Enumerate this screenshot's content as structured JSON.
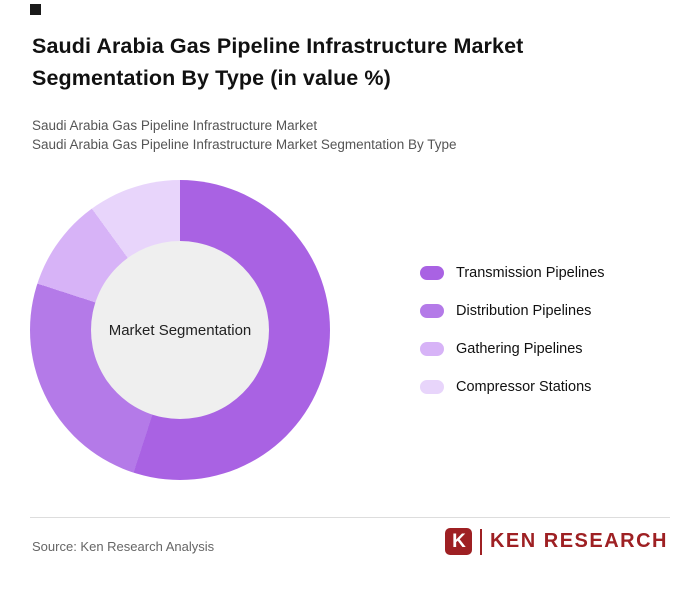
{
  "header": {
    "title": "Saudi Arabia Gas Pipeline Infrastructure Market Segmentation By Type (in value %)",
    "subtitle1": "Saudi Arabia Gas Pipeline Infrastructure Market",
    "subtitle2": "Saudi Arabia Gas Pipeline Infrastructure Market Segmentation By Type"
  },
  "chart_data": {
    "type": "pie",
    "subtype": "donut",
    "title": "Saudi Arabia Gas Pipeline Infrastructure Market Segmentation By Type (in value %)",
    "center_label": "Market Segmentation",
    "categories": [
      "Transmission Pipelines",
      "Distribution Pipelines",
      "Gathering Pipelines",
      "Compressor Stations"
    ],
    "values": [
      55,
      25,
      10,
      10
    ],
    "colors": [
      "#a962e3",
      "#b47ae8",
      "#d7b3f7",
      "#e8d5fb"
    ],
    "legend_position": "right",
    "start_angle_deg": 0,
    "data_labels_shown": false
  },
  "footer": {
    "source": "Source: Ken Research Analysis",
    "logo_k": "K",
    "logo_text": "KEN RESEARCH"
  }
}
